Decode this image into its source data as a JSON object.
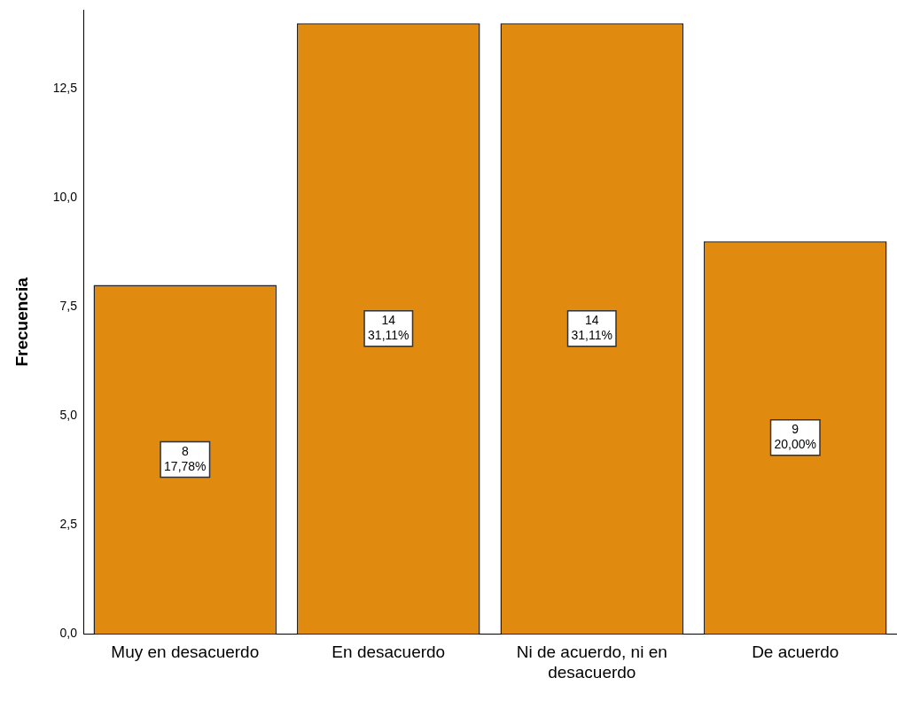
{
  "chart_data": {
    "type": "bar",
    "ylabel": "Frecuencia",
    "categories": [
      "Muy en desacuerdo",
      "En desacuerdo",
      "Ni de acuerdo, ni en desacuerdo",
      "De acuerdo"
    ],
    "values": [
      8,
      14,
      14,
      9
    ],
    "color": "#e08a10",
    "value_labels": [
      "8\n17,78%",
      "14\n31,11%",
      "14\n31,11%",
      "9\n20,00%"
    ],
    "ylim": [
      0,
      14.3
    ],
    "yticks": [
      {
        "value": 0,
        "label": "0,0"
      },
      {
        "value": 2.5,
        "label": "2,5"
      },
      {
        "value": 5,
        "label": "5,0"
      },
      {
        "value": 7.5,
        "label": "7,5"
      },
      {
        "value": 10,
        "label": "10,0"
      },
      {
        "value": 12.5,
        "label": "12,5"
      }
    ],
    "grid": false,
    "legend": false
  }
}
